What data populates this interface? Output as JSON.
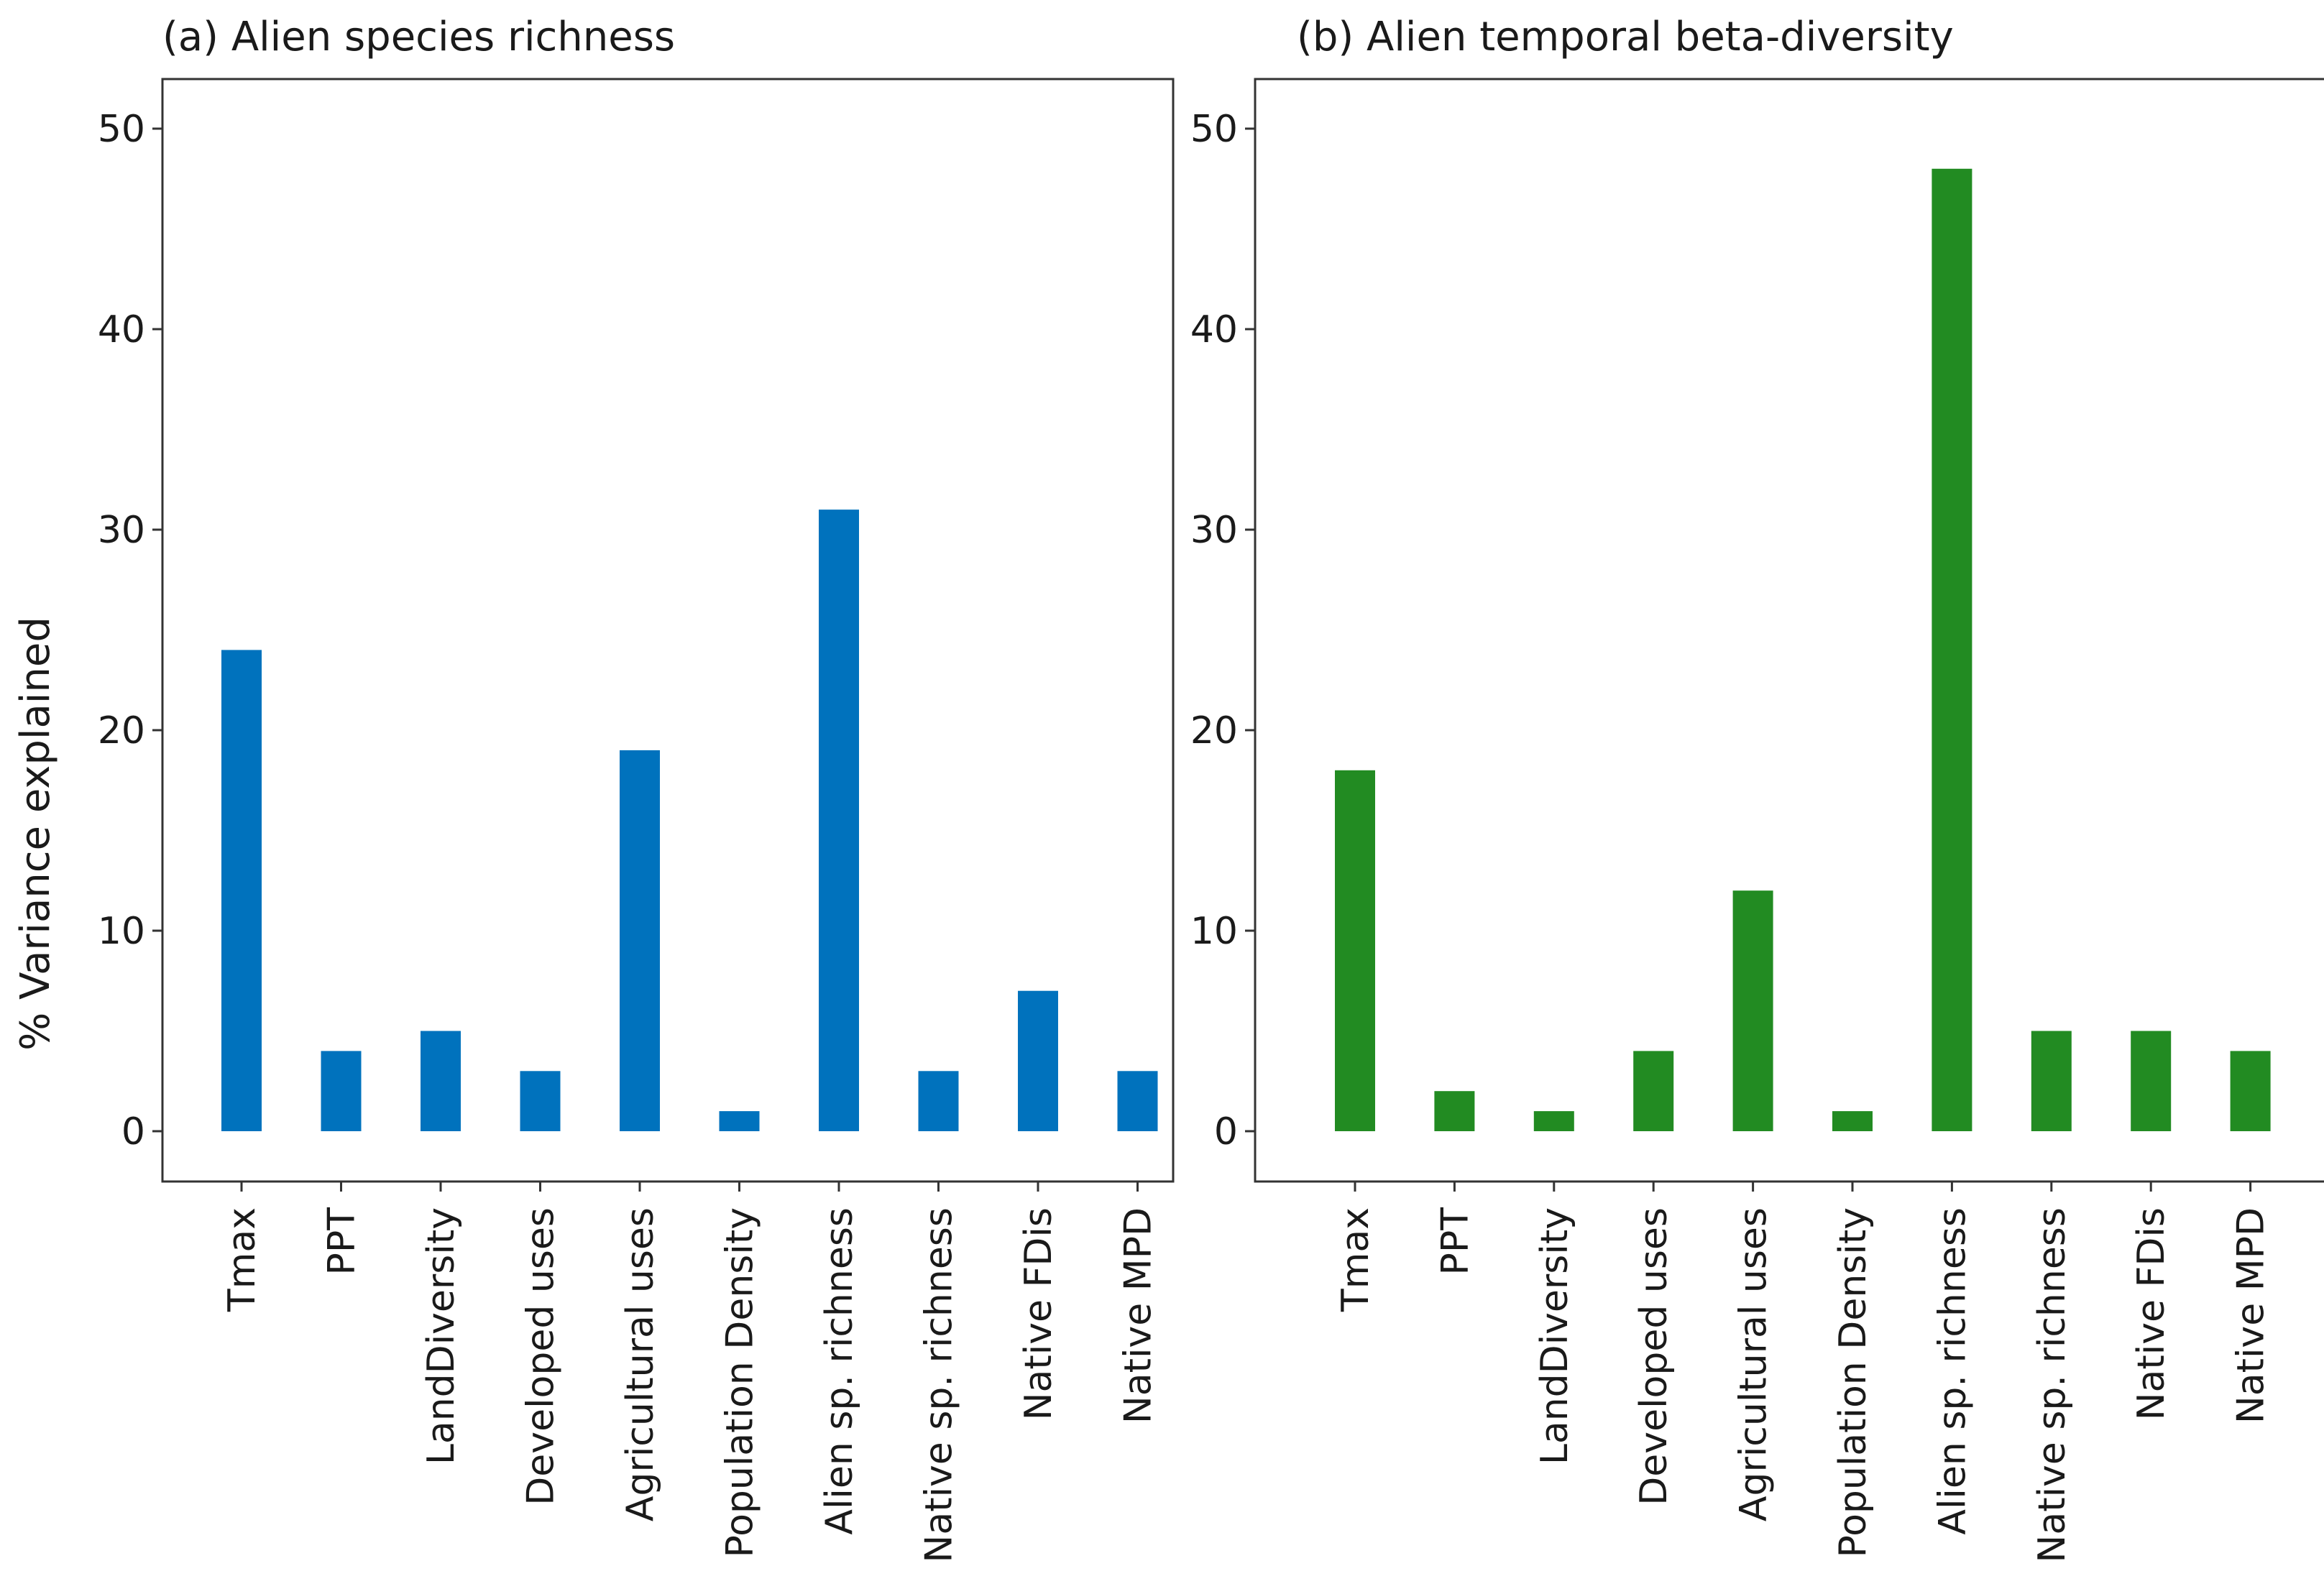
{
  "chart_data": [
    {
      "type": "bar",
      "title": "(a) Alien species richness",
      "ylabel": "% Variance explained",
      "xlabel": "",
      "ylim": [
        -2.5,
        52.5
      ],
      "yticks": [
        0,
        10,
        20,
        30,
        40,
        50
      ],
      "color": "#0072bd",
      "categories": [
        "Tmax",
        "PPT",
        "LandDiversity",
        "Developed uses",
        "Agricultural uses",
        "Population Density",
        "Alien sp. richness",
        "Native sp. richness",
        "Native FDis",
        "Native MPD"
      ],
      "values": [
        24,
        4,
        5,
        3,
        19,
        1,
        31,
        3,
        7,
        3
      ]
    },
    {
      "type": "bar",
      "title": "(b) Alien temporal beta-diversity",
      "ylabel": "",
      "xlabel": "",
      "ylim": [
        -2.5,
        52.5
      ],
      "yticks": [
        0,
        10,
        20,
        30,
        40,
        50
      ],
      "color": "#228b22",
      "categories": [
        "Tmax",
        "PPT",
        "LandDiversity",
        "Developed uses",
        "Agricultural uses",
        "Population Density",
        "Alien sp. richness",
        "Native sp. richness",
        "Native FDis",
        "Native MPD"
      ],
      "values": [
        18,
        2,
        1,
        4,
        12,
        1,
        48,
        5,
        5,
        4
      ]
    }
  ]
}
